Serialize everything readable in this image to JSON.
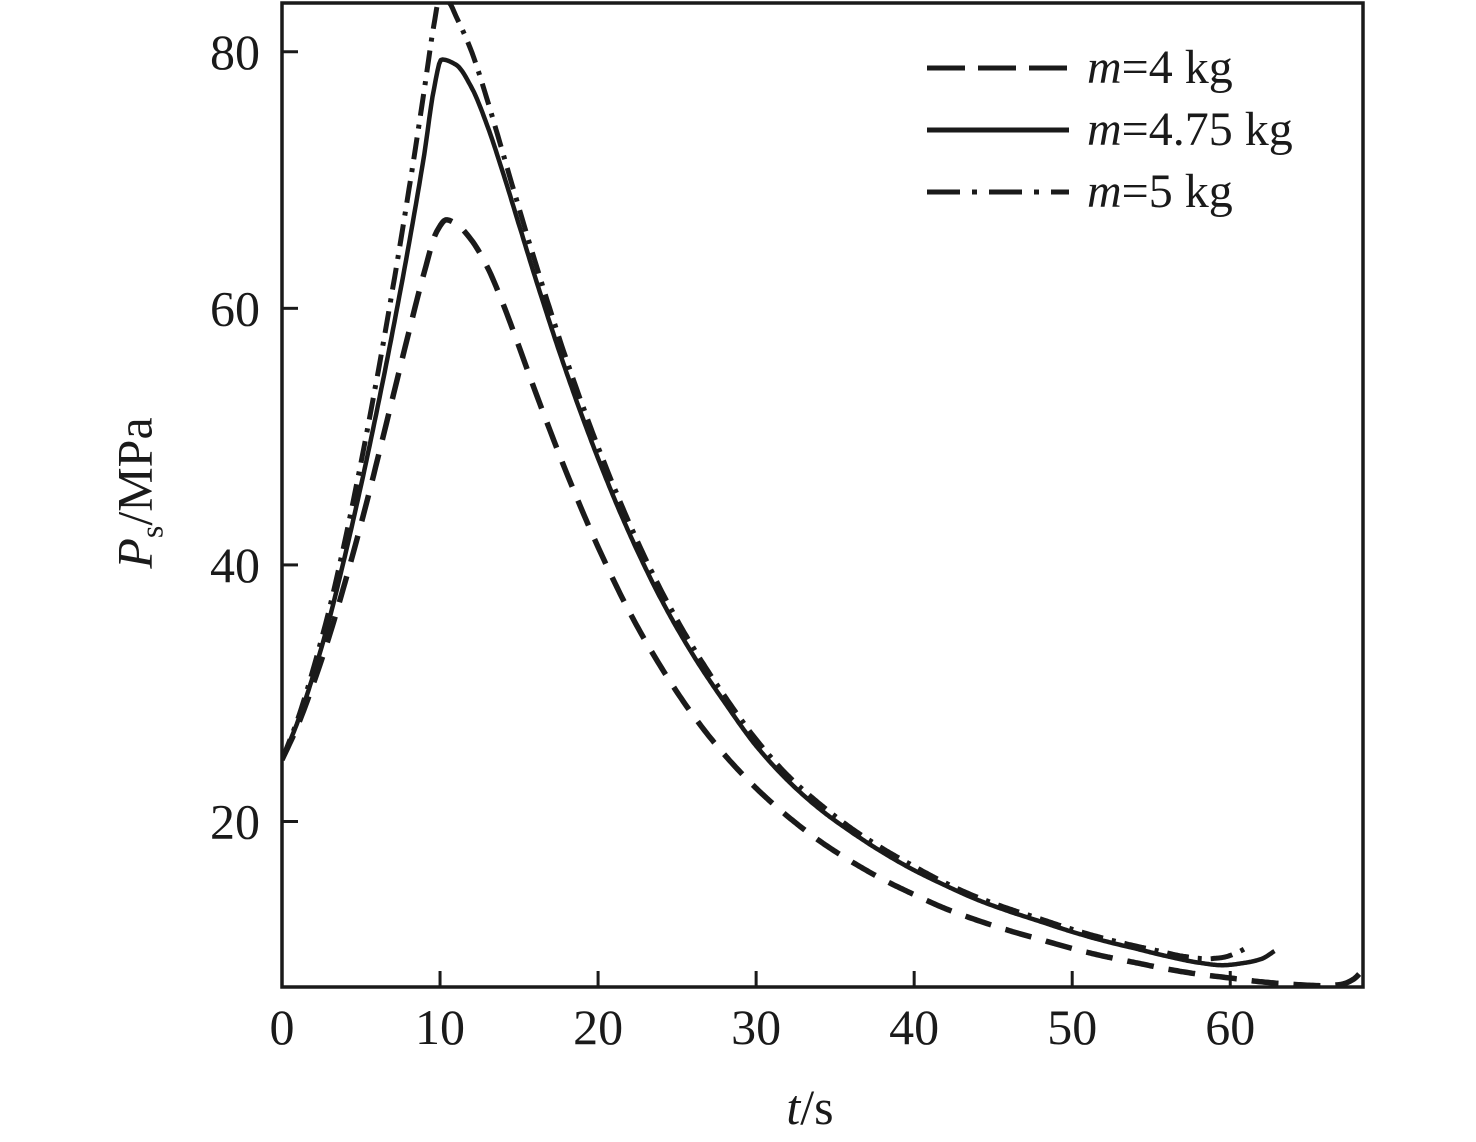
{
  "figure": {
    "background": "#ffffff",
    "ink": "#1a1a1a"
  },
  "chart_data": {
    "type": "line",
    "title": "",
    "xlabel": {
      "var": "t",
      "rest": "/s"
    },
    "ylabel": {
      "var": "P",
      "sub": "s",
      "rest": "/MPa"
    },
    "xlim": [
      0,
      68.4
    ],
    "ylim": [
      7.1,
      83.8
    ],
    "x_ticks": [
      0,
      10,
      20,
      30,
      40,
      50,
      60
    ],
    "y_ticks": [
      20,
      40,
      60,
      80
    ],
    "grid": false,
    "legend_position": "top-right",
    "series": [
      {
        "label_var": "m",
        "label_rest": "=4 kg",
        "style": "dashed",
        "peak": {
          "t": 10.4,
          "P": 66.9
        },
        "start": {
          "t": 0,
          "P": 24.8
        },
        "end": {
          "t": 68.3,
          "P": 8.3
        },
        "points": [
          [
            0,
            24.8
          ],
          [
            1,
            27.5
          ],
          [
            2,
            30.8
          ],
          [
            3,
            34.5
          ],
          [
            4,
            38.7
          ],
          [
            5,
            43.2
          ],
          [
            6,
            48
          ],
          [
            7,
            53
          ],
          [
            8,
            58
          ],
          [
            9,
            62.8
          ],
          [
            9.8,
            66
          ],
          [
            10.4,
            66.9
          ],
          [
            11,
            66.6
          ],
          [
            12,
            65.3
          ],
          [
            13,
            63.2
          ],
          [
            14,
            60.3
          ],
          [
            15,
            57
          ],
          [
            16,
            53.6
          ],
          [
            18,
            47.2
          ],
          [
            20,
            41.4
          ],
          [
            22,
            36.3
          ],
          [
            24,
            32
          ],
          [
            26,
            28.3
          ],
          [
            28,
            25.2
          ],
          [
            30,
            22.6
          ],
          [
            32,
            20.4
          ],
          [
            34,
            18.5
          ],
          [
            36,
            16.9
          ],
          [
            38,
            15.5
          ],
          [
            40,
            14.3
          ],
          [
            42,
            13.2
          ],
          [
            44,
            12.3
          ],
          [
            46,
            11.5
          ],
          [
            48,
            10.8
          ],
          [
            50,
            10.1
          ],
          [
            52,
            9.5
          ],
          [
            54,
            9
          ],
          [
            56,
            8.5
          ],
          [
            58,
            8.1
          ],
          [
            60,
            7.8
          ],
          [
            62,
            7.5
          ],
          [
            64,
            7.3
          ],
          [
            66,
            7.2
          ],
          [
            67,
            7.3
          ],
          [
            67.8,
            7.7
          ],
          [
            68.3,
            8.3
          ]
        ]
      },
      {
        "label_var": "m",
        "label_rest": "=4.75 kg",
        "style": "solid",
        "peak": {
          "t": 10.1,
          "P": 79.4
        },
        "start": {
          "t": 0,
          "P": 24.8
        },
        "end": {
          "t": 62.8,
          "P": 9.9
        },
        "points": [
          [
            0,
            24.8
          ],
          [
            1,
            27.8
          ],
          [
            2,
            31.5
          ],
          [
            3,
            35.8
          ],
          [
            4,
            40.8
          ],
          [
            5,
            46.2
          ],
          [
            6,
            52
          ],
          [
            7,
            58.2
          ],
          [
            8,
            64.8
          ],
          [
            9,
            72
          ],
          [
            9.6,
            77
          ],
          [
            10.1,
            79.4
          ],
          [
            11,
            79
          ],
          [
            12,
            77.2
          ],
          [
            13,
            74.2
          ],
          [
            14,
            70.5
          ],
          [
            15,
            66.5
          ],
          [
            16,
            62.5
          ],
          [
            18,
            55
          ],
          [
            20,
            48.3
          ],
          [
            22,
            42.4
          ],
          [
            24,
            37.3
          ],
          [
            26,
            33
          ],
          [
            28,
            29.3
          ],
          [
            30,
            25.9
          ],
          [
            32,
            23.2
          ],
          [
            34,
            21
          ],
          [
            36,
            19.2
          ],
          [
            38,
            17.6
          ],
          [
            40,
            16.2
          ],
          [
            42,
            15
          ],
          [
            44,
            13.9
          ],
          [
            46,
            13
          ],
          [
            48,
            12.2
          ],
          [
            50,
            11.4
          ],
          [
            52,
            10.7
          ],
          [
            54,
            10.1
          ],
          [
            56,
            9.5
          ],
          [
            58,
            9
          ],
          [
            59.5,
            8.8
          ],
          [
            61,
            9
          ],
          [
            62,
            9.3
          ],
          [
            62.8,
            9.9
          ]
        ]
      },
      {
        "label_var": "m",
        "label_rest": "=5 kg",
        "style": "dashdot",
        "peak": {
          "t": 10.0,
          "P": 84.3
        },
        "start": {
          "t": 0,
          "P": 24.8
        },
        "end": {
          "t": 61.1,
          "P": 10.2
        },
        "points": [
          [
            0,
            24.8
          ],
          [
            1,
            28
          ],
          [
            2,
            32
          ],
          [
            3,
            36.6
          ],
          [
            4,
            42
          ],
          [
            5,
            48
          ],
          [
            6,
            54.5
          ],
          [
            7,
            61.5
          ],
          [
            8,
            69
          ],
          [
            9,
            77
          ],
          [
            9.6,
            82
          ],
          [
            10,
            84.3
          ],
          [
            10.6,
            83.8
          ],
          [
            11,
            82.8
          ],
          [
            12,
            80
          ],
          [
            13,
            76.2
          ],
          [
            14,
            72
          ],
          [
            15,
            67.8
          ],
          [
            16,
            63.7
          ],
          [
            18,
            56
          ],
          [
            20,
            49.2
          ],
          [
            22,
            43.2
          ],
          [
            24,
            38
          ],
          [
            26,
            33.6
          ],
          [
            28,
            29.8
          ],
          [
            30,
            26.4
          ],
          [
            32,
            23.6
          ],
          [
            34,
            21.4
          ],
          [
            36,
            19.5
          ],
          [
            38,
            17.9
          ],
          [
            40,
            16.5
          ],
          [
            42,
            15.2
          ],
          [
            44,
            14.1
          ],
          [
            46,
            13.2
          ],
          [
            48,
            12.4
          ],
          [
            50,
            11.6
          ],
          [
            52,
            10.9
          ],
          [
            54,
            10.3
          ],
          [
            55.5,
            9.9
          ],
          [
            57,
            9.5
          ],
          [
            58.5,
            9.3
          ],
          [
            59.5,
            9.4
          ],
          [
            60.3,
            9.7
          ],
          [
            61.1,
            10.2
          ]
        ]
      }
    ]
  }
}
